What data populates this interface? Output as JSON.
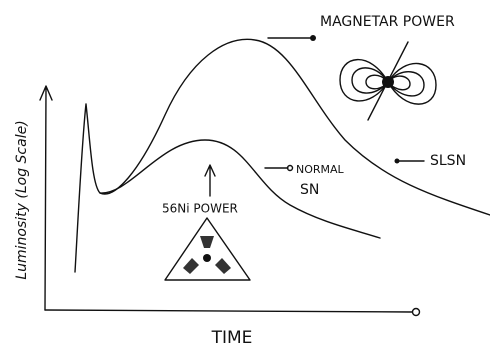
{
  "diagram": {
    "y_axis_label": "Luminosity (Log Scale)",
    "x_axis_label": "TIME",
    "annotations": {
      "magnetar": "MAGNETAR POWER",
      "slsn": "SLSN",
      "normal_line1": "NORMAL",
      "normal_line2": "SN",
      "nickel": "56Ni POWER"
    }
  }
}
